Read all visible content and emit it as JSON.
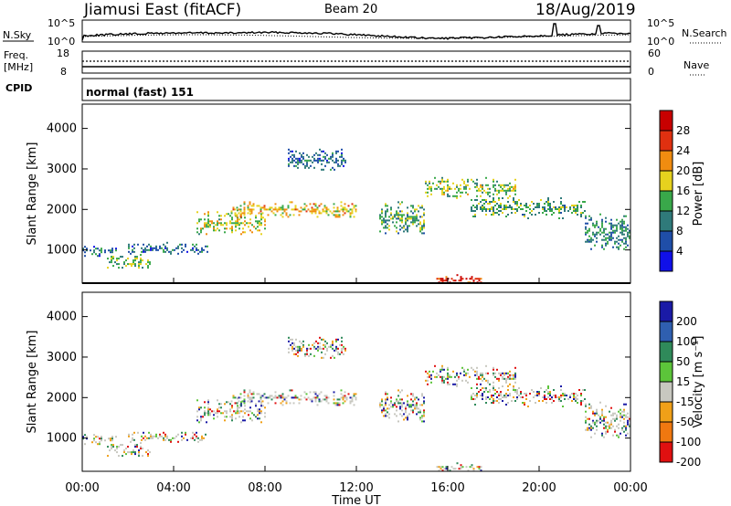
{
  "header": {
    "radar_title": "Jiamusi East (fitACF)",
    "beam": "Beam 20",
    "date": "18/Aug/2019"
  },
  "noise_panel": {
    "left_label": "N.Sky",
    "right_label": "N.Search",
    "left_ticks": [
      "10^5",
      "10^0"
    ],
    "right_ticks": [
      "10^5",
      "10^0"
    ]
  },
  "freq_panel": {
    "left_label_line1": "Freq.",
    "left_label_line2": "[MHz]",
    "left_ticks": [
      "18",
      "8"
    ],
    "right_ticks": [
      "60",
      "0"
    ],
    "right_label": "Nave",
    "cpid_label": "CPID"
  },
  "mode_label": "normal (fast) 151",
  "time_axis": {
    "ticks": [
      "00:00",
      "04:00",
      "08:00",
      "12:00",
      "16:00",
      "20:00",
      "00:00"
    ],
    "label": "Time UT"
  },
  "chart_data": [
    {
      "type": "heatmap",
      "panel": "power",
      "ylabel": "Slant Range [km]",
      "y_ticks": [
        "1000",
        "2000",
        "3000",
        "4000"
      ],
      "ylim": [
        180,
        4600
      ],
      "x_range_hours": [
        0,
        24
      ],
      "colorbar": {
        "label": "Power [dB]",
        "ticks": [
          "4",
          "8",
          "12",
          "16",
          "20",
          "24",
          "28"
        ],
        "range": [
          0,
          30
        ],
        "colors": [
          "#1010e8",
          "#1f4ea8",
          "#2f7a7a",
          "#39a84a",
          "#e6d21e",
          "#f08c10",
          "#e03010",
          "#c80000"
        ]
      },
      "echo_bands": [
        {
          "start_h": 0.0,
          "end_h": 1.5,
          "range_km": [
            850,
            1100
          ],
          "level_db": 8
        },
        {
          "start_h": 1.0,
          "end_h": 3.0,
          "range_km": [
            500,
            900
          ],
          "level_db": 14
        },
        {
          "start_h": 2.0,
          "end_h": 5.5,
          "range_km": [
            900,
            1200
          ],
          "level_db": 8
        },
        {
          "start_h": 5.0,
          "end_h": 8.0,
          "range_km": [
            1400,
            2000
          ],
          "level_db": 16
        },
        {
          "start_h": 6.5,
          "end_h": 12.0,
          "range_km": [
            1800,
            2200
          ],
          "level_db": 18
        },
        {
          "start_h": 9.0,
          "end_h": 11.5,
          "range_km": [
            3000,
            3500
          ],
          "level_db": 8
        },
        {
          "start_h": 13.0,
          "end_h": 15.0,
          "range_km": [
            1400,
            2200
          ],
          "level_db": 12
        },
        {
          "start_h": 15.0,
          "end_h": 19.0,
          "range_km": [
            2300,
            2800
          ],
          "level_db": 14
        },
        {
          "start_h": 17.0,
          "end_h": 22.0,
          "range_km": [
            1800,
            2300
          ],
          "level_db": 12
        },
        {
          "start_h": 22.0,
          "end_h": 24.0,
          "range_km": [
            1000,
            1900
          ],
          "level_db": 10
        },
        {
          "start_h": 15.5,
          "end_h": 17.5,
          "range_km": [
            200,
            400
          ],
          "level_db": 26
        }
      ]
    },
    {
      "type": "heatmap",
      "panel": "velocity",
      "ylabel": "Slant Range [km]",
      "y_ticks": [
        "1000",
        "2000",
        "3000",
        "4000"
      ],
      "ylim": [
        180,
        4600
      ],
      "x_range_hours": [
        0,
        24
      ],
      "colorbar": {
        "label": "Velocity [m s⁻¹]",
        "ticks": [
          "200",
          "100",
          "50",
          "15",
          "-15",
          "-50",
          "-100",
          "-200"
        ],
        "range": [
          -250,
          250
        ],
        "colors": [
          "#1a1aa6",
          "#2f5fb0",
          "#2f8a5a",
          "#5cc43a",
          "#c8c8c0",
          "#f0a018",
          "#f07810",
          "#e01010"
        ]
      },
      "dominant_class": "-15 to 15 (ground scatter, grey)"
    }
  ],
  "colors": {
    "axes": "#000000",
    "ground_scatter": "#c8c8c0"
  }
}
